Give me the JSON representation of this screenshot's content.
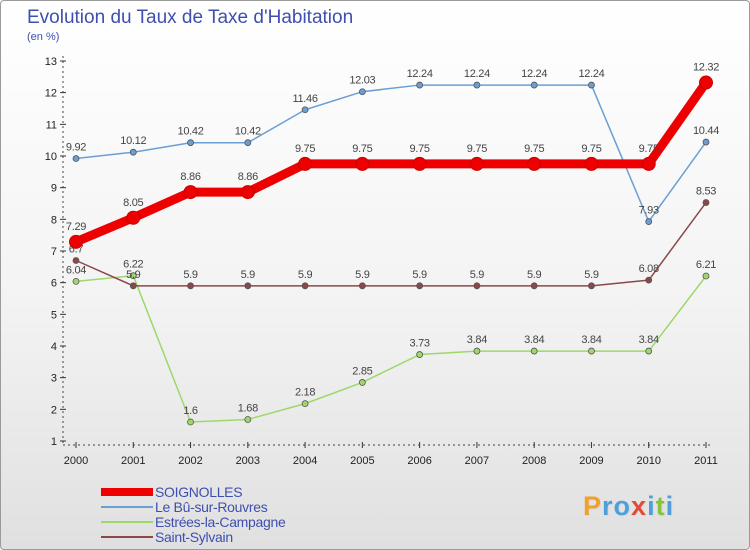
{
  "title": "Evolution du Taux de Taxe d'Habitation",
  "subtitle": "(en %)",
  "logo": {
    "letters": [
      "P",
      "r",
      "o",
      "x",
      "i",
      "t",
      "i"
    ],
    "colors": [
      "#f0a12a",
      "#4da0dc",
      "#4da0dc",
      "#e24a3a",
      "#4da0dc",
      "#86c43c",
      "#4da0dc"
    ]
  },
  "chart_data": {
    "type": "line",
    "title": "Evolution du Taux de Taxe d'Habitation",
    "ylabel": "(en %)",
    "xlabel": "",
    "x": [
      2000,
      2001,
      2002,
      2003,
      2004,
      2005,
      2006,
      2007,
      2008,
      2009,
      2010,
      2011
    ],
    "x_labels": [
      "2000",
      "2001",
      "2002",
      "2003",
      "2004",
      "2005",
      "2006",
      "2007",
      "2008",
      "2009",
      "2010",
      "2011"
    ],
    "y_ticks": [
      "1",
      "2",
      "3",
      "4",
      "5",
      "6",
      "7",
      "8",
      "9",
      "10",
      "11",
      "12",
      "13"
    ],
    "ylim": [
      1,
      13
    ],
    "grid": false,
    "legend_position": "bottom-left",
    "series": [
      {
        "name": "SOIGNOLLES",
        "color": "#ee0000",
        "bold": true,
        "values": [
          7.29,
          8.05,
          8.86,
          8.86,
          9.75,
          9.75,
          9.75,
          9.75,
          9.75,
          9.75,
          9.75,
          12.32
        ],
        "labels": [
          "7.29",
          "8.05",
          "8.86",
          "8.86",
          "9.75",
          "9.75",
          "9.75",
          "9.75",
          "9.75",
          "9.75",
          "9.75",
          "12.32"
        ]
      },
      {
        "name": "Le Bû-sur-Rouvres",
        "color": "#6a9fd4",
        "bold": false,
        "values": [
          9.92,
          10.12,
          10.42,
          10.42,
          11.46,
          12.03,
          12.24,
          12.24,
          12.24,
          12.24,
          7.93,
          10.44
        ],
        "labels": [
          "9.92",
          "10.12",
          "10.42",
          "10.42",
          "11.46",
          "12.03",
          "12.24",
          "12.24",
          "12.24",
          "12.24",
          "7.93",
          "10.44"
        ]
      },
      {
        "name": "Estrées-la-Campagne",
        "color": "#9ed86a",
        "bold": false,
        "values": [
          6.04,
          6.22,
          1.6,
          1.68,
          2.18,
          2.85,
          3.73,
          3.84,
          3.84,
          3.84,
          3.84,
          6.21
        ],
        "labels": [
          "6.04",
          "6.22",
          "1.6",
          "1.68",
          "2.18",
          "2.85",
          "3.73",
          "3.84",
          "3.84",
          "3.84",
          "3.84",
          "6.21"
        ]
      },
      {
        "name": "Saint-Sylvain",
        "color": "#8a4848",
        "bold": false,
        "values": [
          6.7,
          5.9,
          5.9,
          5.9,
          5.9,
          5.9,
          5.9,
          5.9,
          5.9,
          5.9,
          6.08,
          8.53
        ],
        "labels": [
          "6.7",
          "5.9",
          "5.9",
          "5.9",
          "5.9",
          "5.9",
          "5.9",
          "5.9",
          "5.9",
          "5.9",
          "6.08",
          "8.53"
        ]
      }
    ]
  }
}
